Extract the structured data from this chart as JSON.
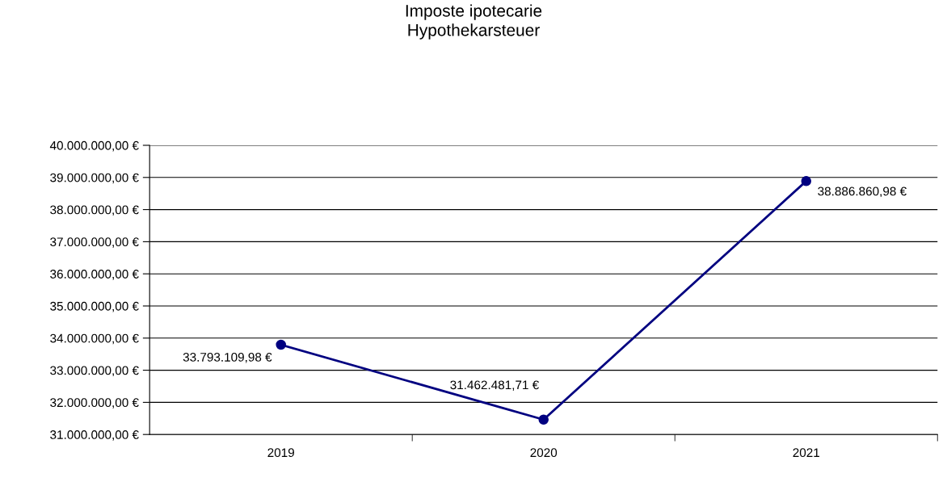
{
  "chart_data": {
    "type": "line",
    "title": "Imposte ipotecarie\nHypothekarsteuer",
    "categories": [
      "2019",
      "2020",
      "2021"
    ],
    "series": [
      {
        "color": "#000080",
        "values": [
          33793109.98,
          31462481.71,
          38886860.98
        ],
        "value_labels": [
          "33.793.109,98 €",
          "31.462.481,71 €",
          "38.886.860,98 €"
        ]
      }
    ],
    "ylim": [
      31000000,
      40000000
    ],
    "yticks": [
      {
        "value": 31000000,
        "label": "31.000.000,00 €"
      },
      {
        "value": 32000000,
        "label": "32.000.000,00 €"
      },
      {
        "value": 33000000,
        "label": "33.000.000,00 €"
      },
      {
        "value": 34000000,
        "label": "34.000.000,00 €"
      },
      {
        "value": 35000000,
        "label": "35.000.000,00 €"
      },
      {
        "value": 36000000,
        "label": "36.000.000,00 €"
      },
      {
        "value": 37000000,
        "label": "37.000.000,00 €"
      },
      {
        "value": 38000000,
        "label": "38.000.000,00 €"
      },
      {
        "value": 39000000,
        "label": "39.000.000,00 €"
      },
      {
        "value": 40000000,
        "label": "40.000.000,00 €"
      }
    ],
    "grid": "y",
    "marker": "circle",
    "line_style": "solid",
    "legend": false
  }
}
